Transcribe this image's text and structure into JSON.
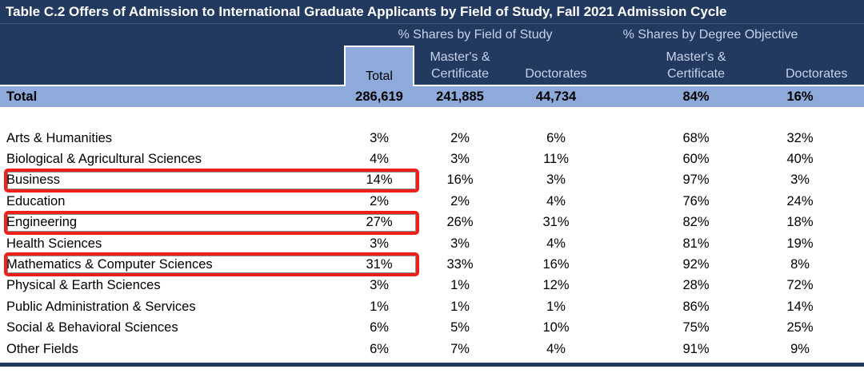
{
  "title": "Table C.2 Offers of Admission to International Graduate Applicants by Field of Study, Fall 2021 Admission Cycle",
  "header": {
    "group_field": "% Shares by Field of Study",
    "group_degree": "% Shares by Degree Objective",
    "col_total": "Total",
    "col_mc_line1": "Master's &",
    "col_mc_line2": "Certificate",
    "col_doct": "Doctorates"
  },
  "total_row": {
    "label": "Total",
    "total": "286,619",
    "mc_field": "241,885",
    "doct_field": "44,734",
    "mc_degree": "84%",
    "doct_degree": "16%"
  },
  "rows": [
    {
      "label": "Arts & Humanities",
      "total": "3%",
      "mc_field": "2%",
      "doct_field": "6%",
      "mc_degree": "68%",
      "doct_degree": "32%",
      "boxed": false
    },
    {
      "label": "Biological & Agricultural Sciences",
      "total": "4%",
      "mc_field": "3%",
      "doct_field": "11%",
      "mc_degree": "60%",
      "doct_degree": "40%",
      "boxed": false
    },
    {
      "label": "Business",
      "total": "14%",
      "mc_field": "16%",
      "doct_field": "3%",
      "mc_degree": "97%",
      "doct_degree": "3%",
      "boxed": true
    },
    {
      "label": "Education",
      "total": "2%",
      "mc_field": "2%",
      "doct_field": "4%",
      "mc_degree": "76%",
      "doct_degree": "24%",
      "boxed": false
    },
    {
      "label": "Engineering",
      "total": "27%",
      "mc_field": "26%",
      "doct_field": "31%",
      "mc_degree": "82%",
      "doct_degree": "18%",
      "boxed": true
    },
    {
      "label": "Health Sciences",
      "total": "3%",
      "mc_field": "3%",
      "doct_field": "4%",
      "mc_degree": "81%",
      "doct_degree": "19%",
      "boxed": false
    },
    {
      "label": "Mathematics & Computer Sciences",
      "total": "31%",
      "mc_field": "33%",
      "doct_field": "16%",
      "mc_degree": "92%",
      "doct_degree": "8%",
      "boxed": true
    },
    {
      "label": "Physical & Earth Sciences",
      "total": "3%",
      "mc_field": "1%",
      "doct_field": "12%",
      "mc_degree": "28%",
      "doct_degree": "72%",
      "boxed": false
    },
    {
      "label": "Public Administration & Services",
      "total": "1%",
      "mc_field": "1%",
      "doct_field": "1%",
      "mc_degree": "86%",
      "doct_degree": "14%",
      "boxed": false
    },
    {
      "label": "Social & Behavioral Sciences",
      "total": "6%",
      "mc_field": "5%",
      "doct_field": "10%",
      "mc_degree": "75%",
      "doct_degree": "25%",
      "boxed": false
    },
    {
      "label": "Other Fields",
      "total": "6%",
      "mc_field": "7%",
      "doct_field": "4%",
      "mc_degree": "91%",
      "doct_degree": "9%",
      "boxed": false
    }
  ],
  "colors": {
    "header_navy": "#233A60",
    "highlight_light_blue": "#8EAADB",
    "header_text": "#C7D3EC",
    "annotation_red": "#EE2019"
  },
  "chart_data": {
    "type": "table",
    "title": "Table C.2 Offers of Admission to International Graduate Applicants by Field of Study, Fall 2021 Admission Cycle",
    "column_groups": [
      {
        "label": "% Shares by Field of Study",
        "columns": [
          "Total",
          "Master's & Certificate",
          "Doctorates"
        ]
      },
      {
        "label": "% Shares by Degree Objective",
        "columns": [
          "Master's & Certificate",
          "Doctorates"
        ]
      }
    ],
    "columns": [
      "Total",
      "Master's & Certificate (Field of Study)",
      "Doctorates (Field of Study)",
      "Master's & Certificate (Degree Objective)",
      "Doctorates (Degree Objective)"
    ],
    "total_row": {
      "label": "Total",
      "values": [
        "286,619",
        "241,885",
        "44,734",
        "84%",
        "16%"
      ]
    },
    "rows": [
      {
        "label": "Arts & Humanities",
        "values": [
          "3%",
          "2%",
          "6%",
          "68%",
          "32%"
        ]
      },
      {
        "label": "Biological & Agricultural Sciences",
        "values": [
          "4%",
          "3%",
          "11%",
          "60%",
          "40%"
        ]
      },
      {
        "label": "Business",
        "values": [
          "14%",
          "16%",
          "3%",
          "97%",
          "3%"
        ]
      },
      {
        "label": "Education",
        "values": [
          "2%",
          "2%",
          "4%",
          "76%",
          "24%"
        ]
      },
      {
        "label": "Engineering",
        "values": [
          "27%",
          "26%",
          "31%",
          "82%",
          "18%"
        ]
      },
      {
        "label": "Health Sciences",
        "values": [
          "3%",
          "3%",
          "4%",
          "81%",
          "19%"
        ]
      },
      {
        "label": "Mathematics & Computer Sciences",
        "values": [
          "31%",
          "33%",
          "16%",
          "92%",
          "8%"
        ]
      },
      {
        "label": "Physical & Earth Sciences",
        "values": [
          "3%",
          "1%",
          "12%",
          "28%",
          "72%"
        ]
      },
      {
        "label": "Public Administration & Services",
        "values": [
          "1%",
          "1%",
          "1%",
          "86%",
          "14%"
        ]
      },
      {
        "label": "Social & Behavioral Sciences",
        "values": [
          "6%",
          "5%",
          "10%",
          "75%",
          "25%"
        ]
      },
      {
        "label": "Other Fields",
        "values": [
          "6%",
          "7%",
          "4%",
          "91%",
          "9%"
        ]
      }
    ],
    "annotations": [
      {
        "type": "red-box",
        "row": "Business",
        "highlights": "Total share 14%"
      },
      {
        "type": "red-box",
        "row": "Engineering",
        "highlights": "Total share 27%"
      },
      {
        "type": "red-box",
        "row": "Mathematics & Computer Sciences",
        "highlights": "Total share 31%"
      }
    ]
  }
}
